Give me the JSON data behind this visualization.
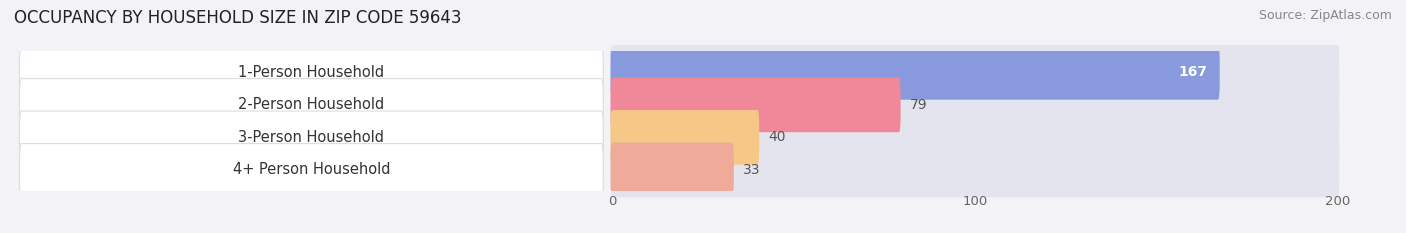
{
  "title": "OCCUPANCY BY HOUSEHOLD SIZE IN ZIP CODE 59643",
  "source": "Source: ZipAtlas.com",
  "categories": [
    "1-Person Household",
    "2-Person Household",
    "3-Person Household",
    "4+ Person Household"
  ],
  "values": [
    167,
    79,
    40,
    33
  ],
  "bar_colors": [
    "#8899dd",
    "#f0889a",
    "#f5c888",
    "#f0aa99"
  ],
  "background_color": "#f2f2f7",
  "bar_bg_color": "#e4e4ee",
  "xlim": [
    -165,
    215
  ],
  "xticks": [
    0,
    100,
    200
  ],
  "title_fontsize": 12,
  "source_fontsize": 9,
  "label_fontsize": 10.5,
  "value_fontsize": 10
}
